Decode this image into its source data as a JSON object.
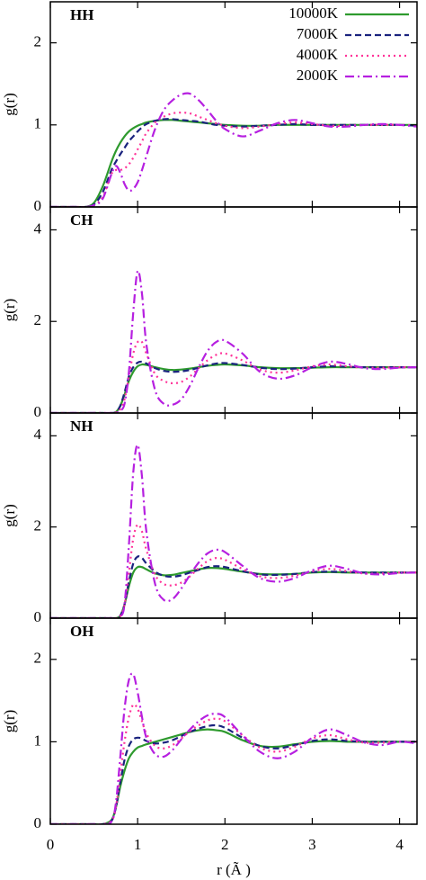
{
  "chart_data": [
    {
      "type": "line",
      "title": "HH",
      "ylabel": "g(r)",
      "legend": "upper right",
      "xlim": [
        0,
        4.2
      ],
      "ylim": [
        0,
        2.5
      ],
      "yticks": [
        0,
        1,
        2
      ],
      "x": [
        0,
        0.3,
        0.4,
        0.5,
        0.6,
        0.7,
        0.75,
        0.8,
        0.85,
        0.9,
        0.95,
        1.0,
        1.05,
        1.1,
        1.2,
        1.3,
        1.4,
        1.5,
        1.6,
        1.7,
        1.8,
        1.9,
        2.0,
        2.2,
        2.4,
        2.6,
        2.8,
        3.0,
        3.2,
        3.4,
        3.6,
        3.8,
        4.0,
        4.2
      ],
      "series": [
        {
          "name": "10000K",
          "color": "#2e9a2e",
          "dash": "none",
          "values": [
            0,
            0,
            0,
            0.05,
            0.25,
            0.55,
            0.68,
            0.78,
            0.86,
            0.92,
            0.96,
            0.99,
            1.01,
            1.03,
            1.05,
            1.06,
            1.06,
            1.05,
            1.04,
            1.03,
            1.02,
            1.01,
            1.0,
            0.99,
            0.99,
            1.0,
            1.0,
            1.0,
            1.0,
            1.0,
            1.0,
            1.0,
            1.0,
            1.0
          ]
        },
        {
          "name": "7000K",
          "color": "#1a237e",
          "dash": "7,4",
          "values": [
            0,
            0,
            0,
            0.03,
            0.18,
            0.45,
            0.55,
            0.64,
            0.72,
            0.8,
            0.86,
            0.92,
            0.97,
            1.01,
            1.05,
            1.07,
            1.07,
            1.06,
            1.05,
            1.04,
            1.02,
            1.0,
            0.99,
            0.98,
            0.99,
            1.0,
            1.01,
            1.0,
            1.0,
            1.0,
            1.0,
            1.0,
            1.0,
            0.99
          ]
        },
        {
          "name": "4000K",
          "color": "#ff3399",
          "dash": "2,4",
          "values": [
            0,
            0,
            0,
            0.02,
            0.12,
            0.4,
            0.45,
            0.45,
            0.47,
            0.52,
            0.6,
            0.7,
            0.8,
            0.9,
            1.03,
            1.1,
            1.14,
            1.15,
            1.14,
            1.1,
            1.06,
            1.02,
            0.99,
            0.96,
            0.98,
            1.01,
            1.03,
            1.01,
            0.99,
            0.99,
            1.0,
            1.0,
            1.0,
            0.99
          ]
        },
        {
          "name": "2000K",
          "color": "#b620e0",
          "dash": "10,4,2,4",
          "values": [
            0,
            0,
            0,
            0.02,
            0.1,
            0.4,
            0.5,
            0.42,
            0.28,
            0.2,
            0.22,
            0.3,
            0.45,
            0.62,
            0.95,
            1.18,
            1.3,
            1.37,
            1.38,
            1.3,
            1.18,
            1.05,
            0.95,
            0.86,
            0.93,
            1.02,
            1.06,
            1.02,
            0.98,
            0.98,
            1.0,
            1.01,
            1.0,
            0.98
          ]
        }
      ]
    },
    {
      "type": "line",
      "title": "CH",
      "ylabel": "g(r)",
      "xlim": [
        0,
        4.2
      ],
      "ylim": [
        0,
        4.5
      ],
      "yticks": [
        0,
        2,
        4
      ],
      "x": [
        0,
        0.3,
        0.4,
        0.5,
        0.6,
        0.7,
        0.75,
        0.8,
        0.85,
        0.9,
        0.95,
        1.0,
        1.05,
        1.1,
        1.2,
        1.3,
        1.4,
        1.5,
        1.6,
        1.7,
        1.8,
        1.9,
        2.0,
        2.2,
        2.4,
        2.6,
        2.8,
        3.0,
        3.2,
        3.4,
        3.6,
        3.8,
        4.0,
        4.2
      ],
      "series": [
        {
          "color": "#2e9a2e",
          "dash": "none",
          "values": [
            0,
            0,
            0,
            0,
            0,
            0,
            0.02,
            0.15,
            0.4,
            0.7,
            0.9,
            1.02,
            1.06,
            1.05,
            1.0,
            0.96,
            0.94,
            0.95,
            0.97,
            1.0,
            1.03,
            1.05,
            1.06,
            1.04,
            1.0,
            0.98,
            0.98,
            0.99,
            1.0,
            1.0,
            1.0,
            1.0,
            1.0,
            1.0
          ]
        },
        {
          "color": "#1a237e",
          "dash": "7,4",
          "values": [
            0,
            0,
            0,
            0,
            0,
            0,
            0.02,
            0.15,
            0.45,
            0.8,
            1.0,
            1.1,
            1.12,
            1.08,
            0.98,
            0.92,
            0.9,
            0.91,
            0.94,
            0.99,
            1.04,
            1.08,
            1.09,
            1.05,
            0.99,
            0.96,
            0.97,
            1.0,
            1.02,
            1.01,
            1.0,
            1.0,
            1.0,
            1.0
          ]
        },
        {
          "color": "#ff3399",
          "dash": "2,4",
          "values": [
            0,
            0,
            0,
            0,
            0,
            0,
            0.01,
            0.08,
            0.3,
            0.8,
            1.3,
            1.55,
            1.55,
            1.3,
            0.85,
            0.7,
            0.65,
            0.68,
            0.8,
            0.98,
            1.15,
            1.27,
            1.3,
            1.15,
            0.95,
            0.88,
            0.93,
            1.02,
            1.06,
            1.02,
            0.99,
            0.99,
            1.0,
            1.0
          ]
        },
        {
          "color": "#b620e0",
          "dash": "10,4,2,4",
          "values": [
            0,
            0,
            0,
            0,
            0,
            0,
            0.01,
            0.05,
            0.2,
            0.9,
            2.2,
            3.1,
            2.6,
            1.5,
            0.5,
            0.2,
            0.18,
            0.3,
            0.6,
            1.0,
            1.35,
            1.55,
            1.58,
            1.3,
            0.9,
            0.75,
            0.82,
            1.0,
            1.12,
            1.07,
            0.98,
            0.96,
            0.99,
            1.0
          ]
        }
      ]
    },
    {
      "type": "line",
      "title": "NH",
      "ylabel": "g(r)",
      "xlim": [
        0,
        4.2
      ],
      "ylim": [
        0,
        4.5
      ],
      "yticks": [
        0,
        2,
        4
      ],
      "x": [
        0,
        0.3,
        0.4,
        0.5,
        0.6,
        0.7,
        0.75,
        0.8,
        0.85,
        0.9,
        0.95,
        1.0,
        1.05,
        1.1,
        1.2,
        1.3,
        1.4,
        1.5,
        1.6,
        1.7,
        1.8,
        1.9,
        2.0,
        2.2,
        2.4,
        2.6,
        2.8,
        3.0,
        3.2,
        3.4,
        3.6,
        3.8,
        4.0,
        4.2
      ],
      "series": [
        {
          "color": "#2e9a2e",
          "dash": "none",
          "values": [
            0,
            0,
            0,
            0,
            0,
            0,
            0,
            0.05,
            0.3,
            0.7,
            1.0,
            1.12,
            1.12,
            1.07,
            0.98,
            0.94,
            0.95,
            0.99,
            1.03,
            1.07,
            1.1,
            1.1,
            1.08,
            1.02,
            0.97,
            0.96,
            0.97,
            1.0,
            1.01,
            1.0,
            1.0,
            1.0,
            1.0,
            1.0
          ]
        },
        {
          "color": "#1a237e",
          "dash": "7,4",
          "values": [
            0,
            0,
            0,
            0,
            0,
            0,
            0,
            0.05,
            0.3,
            0.8,
            1.2,
            1.35,
            1.32,
            1.2,
            1.02,
            0.93,
            0.91,
            0.94,
            1.0,
            1.06,
            1.12,
            1.14,
            1.12,
            1.03,
            0.96,
            0.95,
            0.97,
            1.01,
            1.02,
            1.01,
            1.0,
            1.0,
            1.0,
            1.0
          ]
        },
        {
          "color": "#ff3399",
          "dash": "2,4",
          "values": [
            0,
            0,
            0,
            0,
            0,
            0,
            0,
            0.04,
            0.3,
            1.0,
            1.75,
            2.05,
            1.9,
            1.5,
            0.95,
            0.75,
            0.72,
            0.78,
            0.92,
            1.1,
            1.25,
            1.32,
            1.28,
            1.08,
            0.92,
            0.88,
            0.93,
            1.03,
            1.08,
            1.03,
            0.98,
            0.98,
            1.0,
            1.0
          ]
        },
        {
          "color": "#b620e0",
          "dash": "10,4,2,4",
          "values": [
            0,
            0,
            0,
            0,
            0,
            0,
            0,
            0.03,
            0.3,
            1.6,
            3.2,
            3.8,
            3.1,
            1.9,
            0.75,
            0.4,
            0.42,
            0.65,
            0.95,
            1.22,
            1.42,
            1.5,
            1.45,
            1.15,
            0.88,
            0.8,
            0.88,
            1.05,
            1.15,
            1.08,
            0.98,
            0.96,
            0.99,
            1.0
          ]
        }
      ]
    },
    {
      "type": "line",
      "title": "OH",
      "ylabel": "g(r)",
      "xlabel": "r (Ã )",
      "xlim": [
        0,
        4.2
      ],
      "xticks": [
        0,
        1,
        2,
        3,
        4
      ],
      "ylim": [
        0,
        2.5
      ],
      "yticks": [
        0,
        1,
        2
      ],
      "x": [
        0,
        0.3,
        0.4,
        0.5,
        0.6,
        0.7,
        0.75,
        0.8,
        0.85,
        0.9,
        0.95,
        1.0,
        1.05,
        1.1,
        1.2,
        1.3,
        1.4,
        1.5,
        1.6,
        1.7,
        1.8,
        1.9,
        2.0,
        2.2,
        2.4,
        2.6,
        2.8,
        3.0,
        3.2,
        3.4,
        3.6,
        3.8,
        4.0,
        4.2
      ],
      "series": [
        {
          "color": "#2e9a2e",
          "dash": "none",
          "values": [
            0,
            0,
            0,
            0,
            0,
            0.05,
            0.2,
            0.45,
            0.65,
            0.8,
            0.88,
            0.93,
            0.95,
            0.97,
            1.0,
            1.03,
            1.06,
            1.09,
            1.12,
            1.14,
            1.15,
            1.14,
            1.12,
            1.02,
            0.95,
            0.94,
            0.97,
            1.0,
            1.01,
            1.0,
            1.0,
            1.0,
            1.0,
            1.0
          ]
        },
        {
          "color": "#1a237e",
          "dash": "7,4",
          "values": [
            0,
            0,
            0,
            0,
            0,
            0.04,
            0.2,
            0.5,
            0.78,
            0.95,
            1.03,
            1.05,
            1.04,
            1.01,
            0.98,
            0.99,
            1.02,
            1.07,
            1.12,
            1.16,
            1.19,
            1.2,
            1.17,
            1.05,
            0.95,
            0.92,
            0.96,
            1.01,
            1.03,
            1.01,
            1.0,
            1.0,
            1.0,
            1.0
          ]
        },
        {
          "color": "#ff3399",
          "dash": "2,4",
          "values": [
            0,
            0,
            0,
            0,
            0,
            0.04,
            0.2,
            0.6,
            1.0,
            1.3,
            1.45,
            1.4,
            1.25,
            1.1,
            0.95,
            0.92,
            0.96,
            1.04,
            1.13,
            1.2,
            1.26,
            1.28,
            1.25,
            1.08,
            0.93,
            0.88,
            0.94,
            1.04,
            1.08,
            1.03,
            0.99,
            0.99,
            1.0,
            1.0
          ]
        },
        {
          "color": "#b620e0",
          "dash": "10,4,2,4",
          "values": [
            0,
            0,
            0,
            0,
            0,
            0.03,
            0.25,
            0.8,
            1.4,
            1.75,
            1.82,
            1.6,
            1.3,
            1.05,
            0.85,
            0.82,
            0.9,
            1.03,
            1.15,
            1.25,
            1.32,
            1.34,
            1.3,
            1.08,
            0.88,
            0.8,
            0.88,
            1.05,
            1.15,
            1.08,
            0.99,
            0.96,
            1.0,
            0.98
          ]
        }
      ]
    }
  ]
}
